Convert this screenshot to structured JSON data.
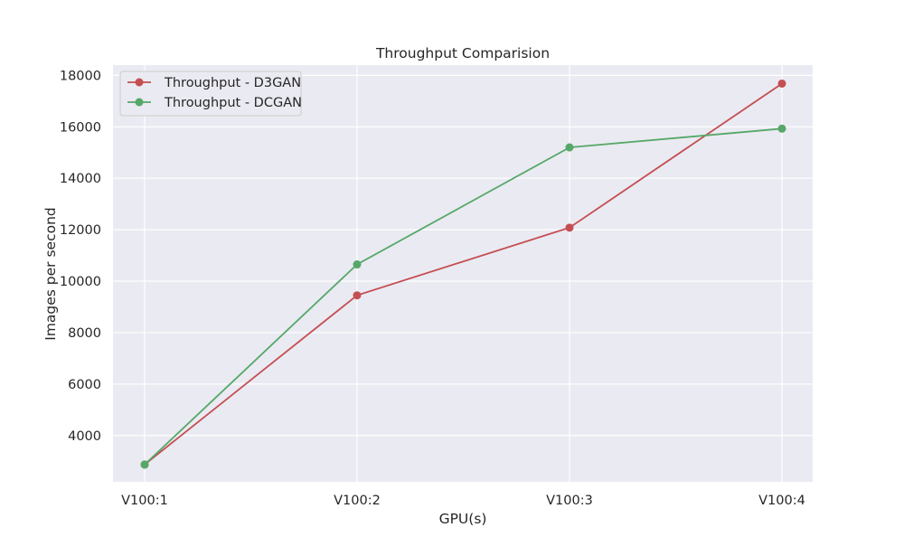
{
  "chart_data": {
    "type": "line",
    "title": "Throughput Comparision",
    "xlabel": "GPU(s)",
    "ylabel": "Images per second",
    "categories": [
      "V100:1",
      "V100:2",
      "V100:3",
      "V100:4"
    ],
    "ylim": [
      2200,
      18400
    ],
    "yticks": [
      4000,
      6000,
      8000,
      10000,
      12000,
      14000,
      16000,
      18000
    ],
    "grid": true,
    "legend_position": "top-left",
    "series": [
      {
        "name": "Throughput - D3GAN",
        "color": "#c44e52",
        "marker": "circle",
        "values": [
          2870,
          9450,
          12080,
          17680
        ]
      },
      {
        "name": "Throughput - DCGAN",
        "color": "#55a868",
        "marker": "circle",
        "values": [
          2870,
          10650,
          15200,
          15930
        ]
      }
    ]
  }
}
